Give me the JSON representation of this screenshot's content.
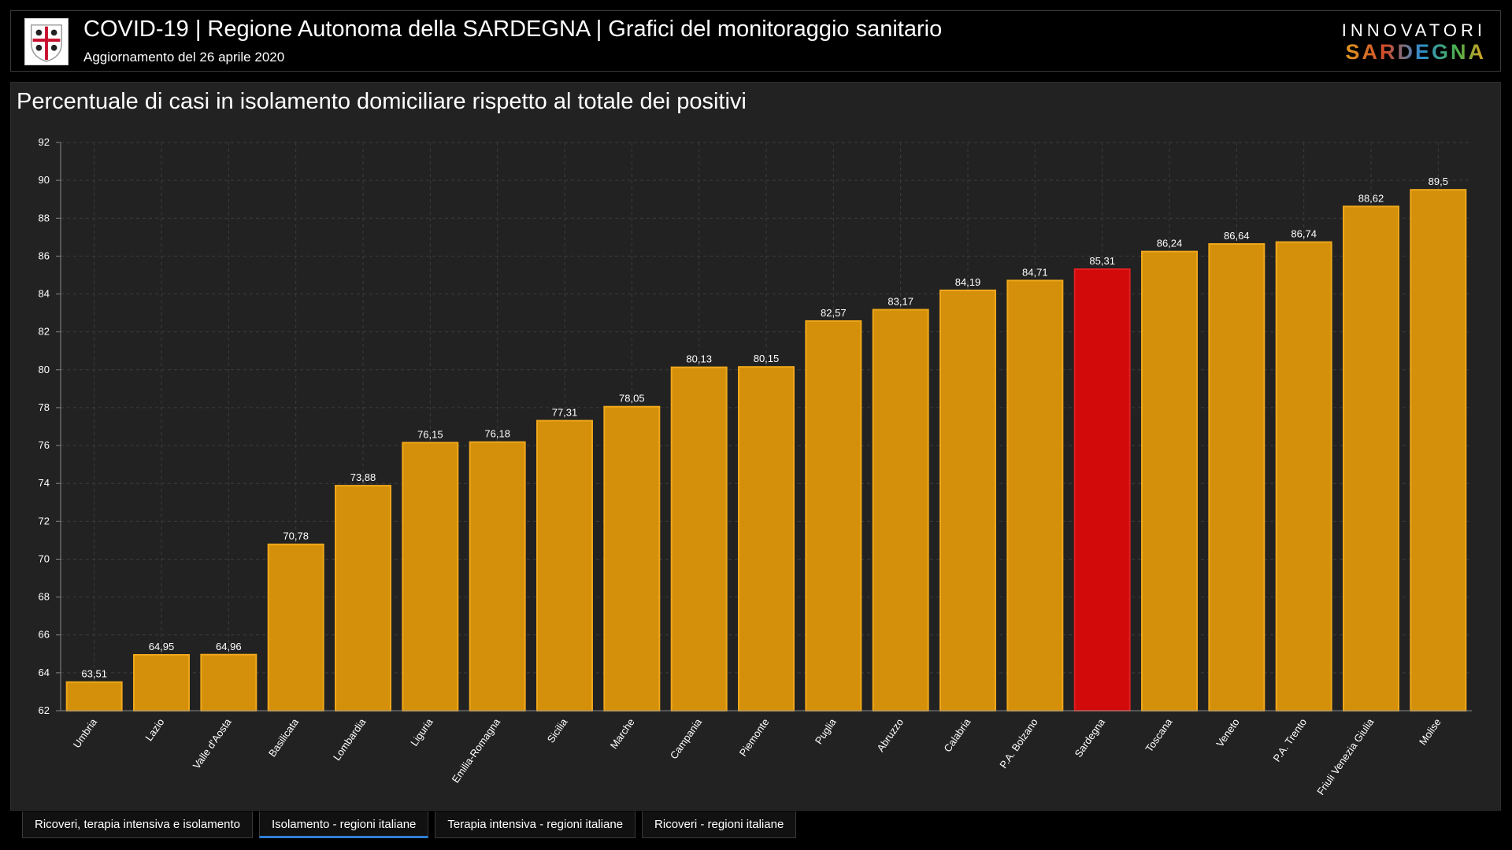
{
  "header": {
    "title": "COVID-19 | Regione Autonoma della SARDEGNA | Grafici del monitoraggio sanitario",
    "subtitle": "Aggiornamento del 26 aprile 2020",
    "brand_top": "INNOVATORI",
    "brand_bottom": "SARDEGNA",
    "logo_icon": "sardinia-coat-of-arms-icon"
  },
  "tabs": [
    {
      "label": "Ricoveri, terapia intensiva e isolamento",
      "active": false
    },
    {
      "label": "Isolamento - regioni italiane",
      "active": true
    },
    {
      "label": "Terapia intensiva - regioni italiane",
      "active": false
    },
    {
      "label": "Ricoveri - regioni italiane",
      "active": false
    }
  ],
  "colors": {
    "bar": "#d4900a",
    "bar_border": "#f0a81a",
    "highlight": "#d20a0a",
    "highlight_border": "#e02020",
    "grid": "#3c3c3c",
    "tab_active_underline": "#2f7fd4"
  },
  "chart_data": {
    "type": "bar",
    "title": "Percentuale di casi in isolamento domiciliare rispetto al totale dei positivi",
    "xlabel": "",
    "ylabel": "",
    "ylim": [
      62,
      92
    ],
    "yticks": [
      "62",
      "64",
      "66",
      "68",
      "70",
      "72",
      "74",
      "76",
      "78",
      "80",
      "82",
      "84",
      "86",
      "88",
      "90",
      "92"
    ],
    "highlight": "Sardegna",
    "categories": [
      "Umbria",
      "Lazio",
      "Valle d'Aosta",
      "Basilicata",
      "Lombardia",
      "Liguria",
      "Emilia-Romagna",
      "Sicilia",
      "Marche",
      "Campania",
      "Piemonte",
      "Puglia",
      "Abruzzo",
      "Calabria",
      "P.A. Bolzano",
      "Sardegna",
      "Toscana",
      "Veneto",
      "P.A. Trento",
      "Friuli Venezia Giulia",
      "Molise"
    ],
    "values": [
      63.51,
      64.95,
      64.96,
      70.78,
      73.88,
      76.15,
      76.18,
      77.31,
      78.05,
      80.13,
      80.15,
      82.57,
      83.17,
      84.19,
      84.71,
      85.31,
      86.24,
      86.64,
      86.74,
      88.62,
      89.5
    ],
    "labels": [
      "63,51",
      "64,95",
      "64,96",
      "70,78",
      "73,88",
      "76,15",
      "76,18",
      "77,31",
      "78,05",
      "80,13",
      "80,15",
      "82,57",
      "83,17",
      "84,19",
      "84,71",
      "85,31",
      "86,24",
      "86,64",
      "86,74",
      "88,62",
      "89,5"
    ]
  }
}
